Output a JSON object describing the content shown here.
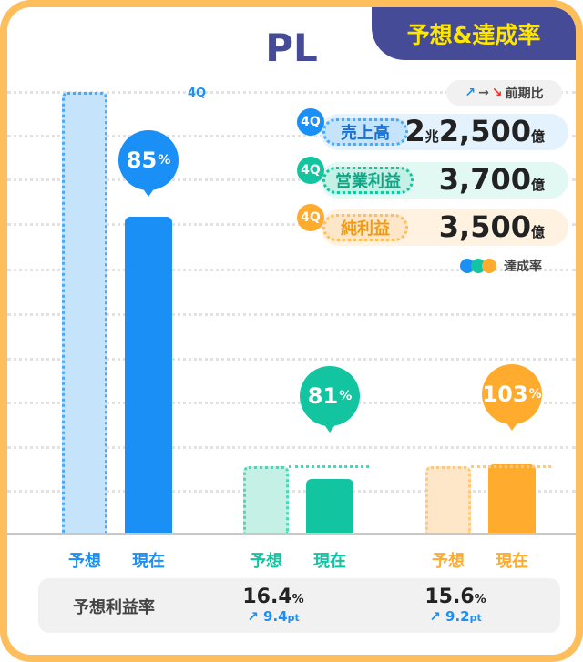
{
  "header": {
    "title": "PL",
    "tab": "予想&達成率"
  },
  "legend": {
    "trend_label": "前期比",
    "achievement_label": "達成率",
    "quarter": "4Q"
  },
  "colors": {
    "blue": "#1a8ff5",
    "green": "#12c5a0",
    "orange": "#ffab2e",
    "navy": "#454b96",
    "border": "#ffbe5c"
  },
  "chart_data": {
    "type": "bar",
    "categories": [
      "売上高",
      "営業利益",
      "純利益"
    ],
    "series": [
      {
        "name": "予想",
        "values": [
          100,
          100,
          100
        ]
      },
      {
        "name": "現在",
        "values": [
          85,
          81,
          103
        ]
      }
    ],
    "achievement": [
      "85",
      "81",
      "103"
    ],
    "unit": "%",
    "bar_labels": [
      "予想",
      "現在"
    ]
  },
  "kpis": [
    {
      "badge": "4Q",
      "label": "売上高",
      "value_a": "2",
      "unit_a": "兆",
      "value": "2,500",
      "unit": "億"
    },
    {
      "badge": "4Q",
      "label": "営業利益",
      "value": "3,700",
      "unit": "億"
    },
    {
      "badge": "4Q",
      "label": "純利益",
      "value": "3,500",
      "unit": "億"
    }
  ],
  "profit_rate": {
    "label": "予想利益率",
    "items": [
      {
        "value": "16.4",
        "unit": "%",
        "delta": "9.4",
        "delta_unit": "pt"
      },
      {
        "value": "15.6",
        "unit": "%",
        "delta": "9.2",
        "delta_unit": "pt"
      }
    ]
  }
}
